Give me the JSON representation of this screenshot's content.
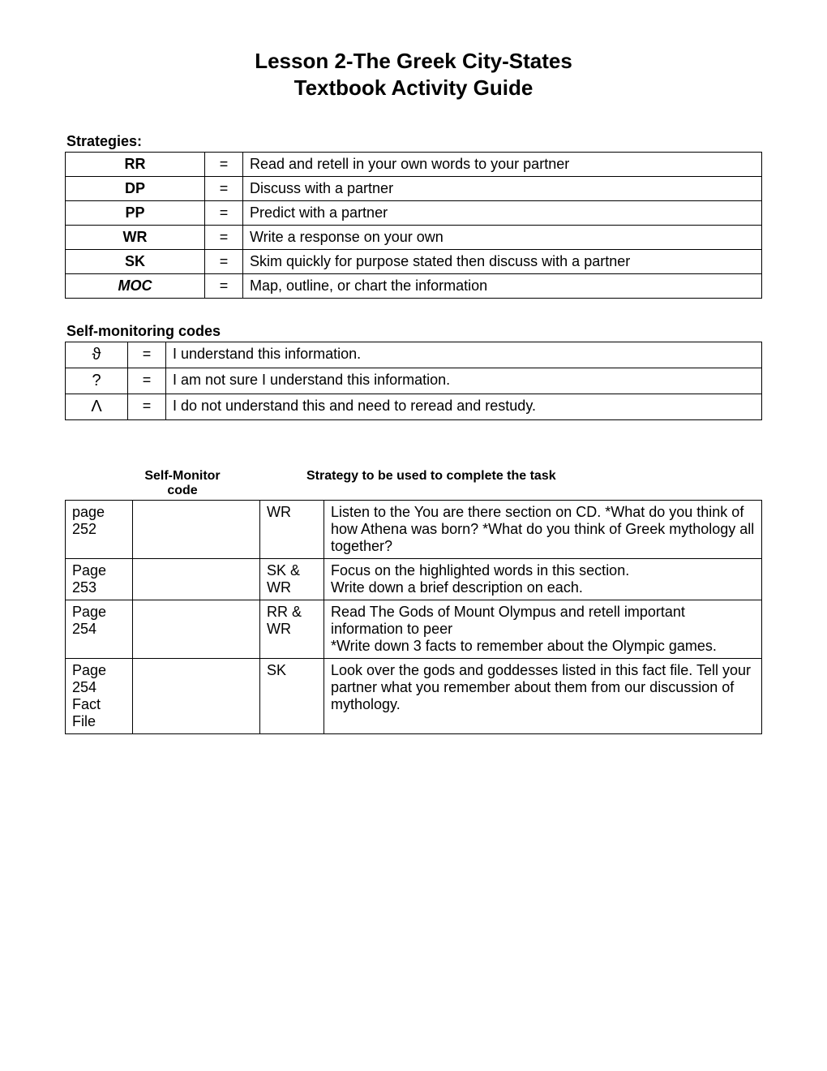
{
  "title": "Lesson 2-The Greek City-States",
  "subtitle": "Textbook Activity Guide",
  "strategies_label": "Strategies:",
  "strategies": [
    {
      "code": "RR",
      "eq": "=",
      "desc": "Read and retell in your own words to your partner",
      "italic": false
    },
    {
      "code": "DP",
      "eq": "=",
      "desc": "Discuss with a partner",
      "italic": false
    },
    {
      "code": "PP",
      "eq": "=",
      "desc": "Predict with a partner",
      "italic": false
    },
    {
      "code": "WR",
      "eq": "=",
      "desc": "Write a response on your own",
      "italic": false
    },
    {
      "code": "SK",
      "eq": "=",
      "desc": "Skim quickly for purpose stated then discuss with a partner",
      "italic": false
    },
    {
      "code": "MOC",
      "eq": "=",
      "desc": "Map, outline, or chart the information",
      "italic": true
    }
  ],
  "codes_label": "Self-monitoring codes",
  "codes": [
    {
      "symbol": "ϑ",
      "eq": "=",
      "desc": "I understand this information."
    },
    {
      "symbol": "?",
      "eq": "=",
      "desc": "I am not sure I understand this information."
    },
    {
      "symbol": "Λ",
      "eq": "=",
      "desc": "I do not understand this and need to reread and restudy."
    }
  ],
  "task_header": {
    "col2a": "Self-Monitor",
    "col2b": "code",
    "col4": "Strategy to be used to complete the task"
  },
  "tasks": [
    {
      "page": "page 252",
      "strategy": "WR",
      "task": "Listen to the You are there section on CD.  *What do you think of how Athena was born?  *What do you think of Greek mythology all together?"
    },
    {
      "page": "Page 253",
      "strategy": "SK & WR",
      "task": "Focus on the highlighted words in this section.\nWrite down a brief description on each."
    },
    {
      "page": "Page 254",
      "strategy": "RR & WR",
      "task": "Read The Gods of Mount Olympus and retell important information to peer\n*Write down 3 facts to remember about the Olympic games."
    },
    {
      "page": "Page 254 Fact File",
      "strategy": "SK",
      "task": "Look over the gods and goddesses listed in this fact file.  Tell your partner what you remember about them from our discussion of mythology."
    }
  ]
}
